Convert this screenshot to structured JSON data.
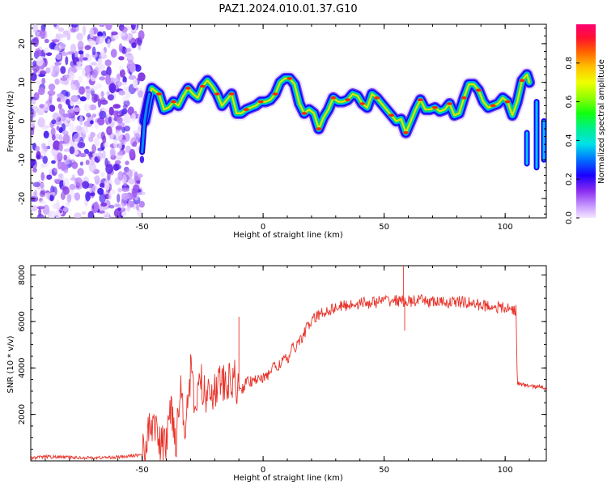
{
  "title": "PAZ1.2024.010.01.37.G10",
  "colors": {
    "snr_line": "#e8332a",
    "ridge_core": "#ff2a00",
    "ridge_mid": "#00e060",
    "ridge_outer": "#0000ff",
    "noise": "#8f3cf0"
  },
  "chart_data": [
    {
      "type": "heatmap",
      "title": "PAZ1.2024.010.01.37.G10",
      "xlabel": "Height of straight line (km)",
      "ylabel": "Frequency (Hz)",
      "xlim": [
        -96,
        117
      ],
      "ylim": [
        -25,
        25
      ],
      "x_ticks": [
        "-50",
        "0",
        "50",
        "100"
      ],
      "y_ticks": [
        "-20",
        "-10",
        "0",
        "10",
        "20"
      ],
      "colorbar": {
        "label": "Normalized spectral amplitude",
        "range": [
          0,
          1
        ],
        "ticks": [
          "0.0",
          "0.2",
          "0.4",
          "0.6",
          "0.8"
        ],
        "colormap": "rainbow"
      },
      "noise_region_x": [
        -96,
        -50
      ],
      "ridge": {
        "x": [
          -49,
          -47,
          -46,
          -43,
          -41,
          -39,
          -37,
          -35,
          -33,
          -31,
          -29,
          -27,
          -25,
          -23,
          -21,
          -19,
          -17,
          -15,
          -13,
          -11,
          -9,
          -7,
          -5,
          -3,
          -1,
          1,
          3,
          5,
          7,
          9,
          11,
          13,
          15,
          17,
          19,
          21,
          23,
          25,
          27,
          29,
          31,
          33,
          35,
          37,
          39,
          41,
          43,
          45,
          47,
          49,
          51,
          53,
          55,
          57,
          59,
          61,
          63,
          65,
          67,
          69,
          71,
          73,
          75,
          77,
          79,
          81,
          83,
          85,
          87,
          89,
          91,
          93,
          95,
          97,
          99,
          101,
          103,
          105,
          107,
          109,
          110
        ],
        "y": [
          0,
          6,
          8.5,
          7,
          3,
          3.5,
          5,
          4,
          6.5,
          8.5,
          7,
          6,
          9,
          10.5,
          9,
          7,
          4,
          5.5,
          7,
          2,
          2,
          3,
          3.5,
          4,
          5,
          5,
          5.5,
          7,
          10,
          11,
          11,
          9.5,
          4.5,
          2,
          3,
          2,
          -2,
          1,
          3,
          6,
          5,
          5,
          5.5,
          7,
          6.5,
          4.5,
          3.5,
          7,
          6,
          4.5,
          3,
          1.5,
          0,
          0.5,
          -3,
          0,
          3,
          5.5,
          3,
          3,
          3.5,
          2.5,
          3,
          4.5,
          1.5,
          2,
          6,
          9.5,
          9.5,
          8,
          5,
          3.5,
          4,
          4.5,
          6,
          5,
          1.5,
          5,
          10.5,
          12,
          10
        ]
      },
      "ridge_segments_right": [
        {
          "x": 109,
          "y_range": [
            -11,
            -3
          ]
        },
        {
          "x": 113,
          "y_range": [
            -12,
            5
          ]
        },
        {
          "x": 116,
          "y_range": [
            -10,
            0
          ]
        }
      ]
    },
    {
      "type": "line",
      "xlabel": "Height of straight line (km)",
      "ylabel": "SNR (10 * v/v)",
      "xlim": [
        -96,
        117
      ],
      "ylim": [
        0,
        8400
      ],
      "x_ticks": [
        "-50",
        "0",
        "50",
        "100"
      ],
      "y_ticks": [
        "2000",
        "4000",
        "6000",
        "8000"
      ],
      "x": [
        -96,
        -90,
        -80,
        -70,
        -60,
        -55,
        -50,
        -47,
        -45,
        -43,
        -40,
        -38,
        -36,
        -34,
        -32,
        -30,
        -28,
        -26,
        -24,
        -22,
        -20,
        -18,
        -16,
        -14,
        -12,
        -10,
        -8,
        -6,
        -4,
        -2,
        0,
        2,
        4,
        6,
        8,
        10,
        12,
        14,
        16,
        18,
        20,
        22,
        25,
        30,
        35,
        40,
        45,
        50,
        55,
        60,
        65,
        70,
        75,
        80,
        85,
        90,
        95,
        100,
        104.5,
        105,
        108,
        112,
        117
      ],
      "y": [
        120,
        180,
        150,
        130,
        160,
        200,
        280,
        1200,
        1900,
        600,
        800,
        2500,
        900,
        3200,
        1500,
        3800,
        2200,
        3600,
        2700,
        3400,
        2900,
        3500,
        3200,
        3300,
        3600,
        3000,
        3200,
        3500,
        3300,
        3700,
        3500,
        3700,
        4100,
        4000,
        4400,
        4300,
        4800,
        5000,
        5300,
        5700,
        6000,
        6200,
        6400,
        6600,
        6700,
        6800,
        6800,
        6900,
        6900,
        6850,
        6900,
        6850,
        6800,
        6850,
        6800,
        6700,
        6650,
        6550,
        6500,
        3350,
        3250,
        3200,
        3150
      ],
      "annotations_spikes": [
        {
          "x": -10,
          "y": 6200
        },
        {
          "x": 58,
          "y": 8400
        },
        {
          "x": 58.5,
          "y": 5600
        }
      ]
    }
  ]
}
